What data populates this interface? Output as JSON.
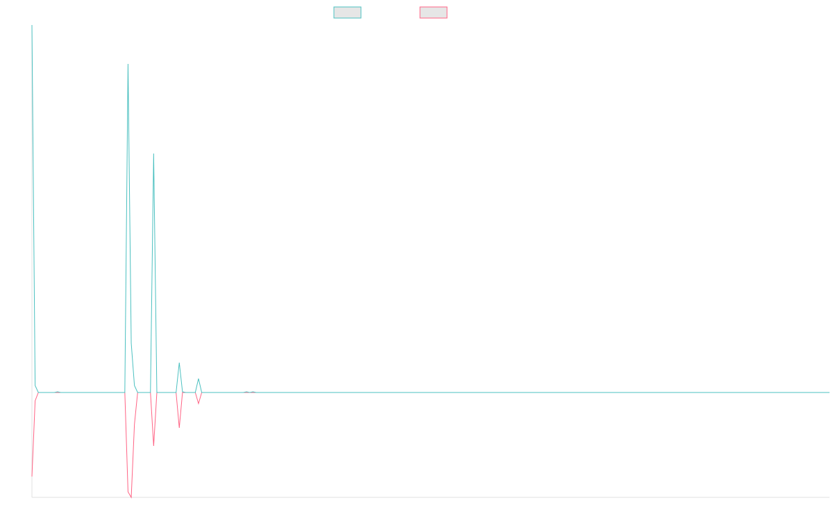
{
  "chart_data": {
    "type": "line",
    "categories": [
      null,
      null,
      null,
      null,
      null,
      null,
      null,
      null,
      null,
      null,
      null,
      null,
      null,
      null,
      null,
      null,
      null,
      null,
      null,
      null,
      null,
      null,
      null,
      null,
      null,
      null,
      null,
      null,
      null,
      null,
      null,
      null,
      null,
      null,
      null,
      null,
      null,
      null,
      null,
      null,
      null,
      null,
      null,
      null,
      null,
      null,
      null,
      null,
      null,
      null,
      null,
      null,
      null,
      null,
      null,
      null,
      null,
      null,
      null,
      null,
      null,
      null,
      null,
      null,
      null,
      null,
      null,
      null,
      null,
      null,
      null,
      null,
      null,
      null,
      null,
      null,
      null,
      null,
      null,
      null,
      null,
      null,
      null,
      null,
      null,
      null,
      null,
      null,
      null,
      null,
      null,
      null,
      null,
      null,
      null,
      null,
      null,
      null,
      null,
      null,
      null,
      null,
      null,
      null,
      null,
      null,
      null,
      null,
      null,
      null,
      null,
      null,
      null,
      null,
      null,
      null,
      null,
      null,
      null,
      null,
      null,
      null,
      null,
      null,
      null,
      null,
      null,
      null,
      null,
      null,
      null,
      null,
      null,
      null,
      null,
      null,
      null,
      null,
      null,
      null,
      null,
      null,
      null,
      null,
      null,
      null,
      null,
      null,
      null,
      null,
      null,
      null,
      null,
      null,
      null,
      null,
      null,
      null,
      null,
      null,
      null,
      null,
      null,
      null,
      null,
      null,
      null,
      null,
      null,
      null,
      null,
      null,
      null,
      null,
      null,
      null,
      null,
      null,
      null,
      null,
      null,
      null,
      null,
      null,
      null,
      null,
      null,
      null,
      null,
      null,
      null,
      null,
      null,
      null,
      null,
      null,
      null,
      null,
      null,
      null,
      null,
      null,
      null,
      null,
      null,
      null,
      null,
      null,
      null,
      null,
      null,
      null,
      null,
      null,
      null,
      null,
      null,
      null,
      null,
      null,
      null,
      null,
      null,
      null,
      null,
      null,
      null,
      null,
      null,
      null,
      null,
      null,
      null,
      null,
      null,
      null,
      null,
      null,
      null,
      null,
      null,
      null,
      null,
      null,
      null,
      null,
      null,
      null,
      null,
      null
    ],
    "series": [
      {
        "color": "#4bc0c0",
        "values": [
          529,
          10,
          0,
          0,
          0,
          0,
          0,
          0,
          1,
          0,
          0,
          0,
          0,
          0,
          0,
          0,
          0,
          0,
          0,
          0,
          0,
          0,
          0,
          0,
          0,
          0,
          0,
          0,
          0,
          0,
          473,
          71,
          10,
          0,
          0,
          0,
          0,
          0,
          344,
          0,
          0,
          0,
          0,
          0,
          0,
          0,
          43,
          1,
          0,
          0,
          0,
          0,
          20,
          0,
          0,
          0,
          0,
          0,
          0,
          0,
          0,
          0,
          0,
          0,
          0,
          0,
          0,
          1,
          0,
          1,
          0,
          0,
          0,
          0,
          0,
          0,
          0,
          0,
          0,
          0,
          0,
          0,
          0,
          0,
          0,
          0,
          0,
          0,
          0,
          0,
          0,
          0,
          0,
          0,
          0,
          0,
          0,
          0,
          0,
          0,
          0,
          0,
          0,
          0,
          0,
          0,
          0,
          0,
          0,
          0,
          0,
          0,
          0,
          0,
          0,
          0,
          0,
          0,
          0,
          0,
          0,
          0,
          0,
          0,
          0,
          0,
          0,
          0,
          0,
          0,
          0,
          0,
          0,
          0,
          0,
          0,
          0,
          0,
          0,
          0,
          0,
          0,
          0,
          0,
          0,
          0,
          0,
          0,
          0,
          0,
          0,
          0,
          0,
          0,
          0,
          0,
          0,
          0,
          0,
          0,
          0,
          0,
          0,
          0,
          0,
          0,
          0,
          0,
          0,
          0,
          0,
          0,
          0,
          0,
          0,
          0,
          0,
          0,
          0,
          0,
          0,
          0,
          0,
          0,
          0,
          0,
          0,
          0,
          0,
          0,
          0,
          0,
          0,
          0,
          0,
          0,
          0,
          0,
          0,
          0,
          0,
          0,
          0,
          0,
          0,
          0,
          0,
          0,
          0,
          0,
          0,
          0,
          0,
          0,
          0,
          0,
          0,
          0,
          0,
          0,
          0,
          0,
          0,
          0,
          0,
          0,
          0,
          0,
          0,
          0,
          0,
          0,
          0,
          0,
          0,
          0,
          0,
          0,
          0,
          0,
          0,
          0,
          0,
          0,
          0,
          0,
          0,
          0,
          0,
          0
        ]
      },
      {
        "color": "#ff6384",
        "values": [
          -121,
          -12,
          0,
          0,
          0,
          0,
          0,
          0,
          0,
          0,
          0,
          0,
          0,
          0,
          0,
          0,
          0,
          0,
          0,
          0,
          0,
          0,
          0,
          0,
          0,
          0,
          0,
          0,
          0,
          0,
          -143,
          -151,
          -46,
          0,
          0,
          0,
          0,
          0,
          -77,
          0,
          0,
          0,
          0,
          0,
          0,
          0,
          -51,
          0,
          0,
          0,
          0,
          0,
          -16,
          0,
          0,
          0,
          0,
          0,
          0,
          0,
          0,
          0,
          0,
          0,
          0,
          0,
          0,
          0,
          0,
          0,
          0,
          0,
          0,
          0,
          0,
          0,
          0,
          0,
          0,
          0,
          0,
          0,
          0,
          0,
          0,
          0,
          0,
          0,
          0,
          0,
          0,
          0,
          0,
          0,
          0,
          0,
          0,
          0,
          0,
          0,
          0,
          0,
          0,
          0,
          0,
          0,
          0,
          0,
          0,
          0,
          0,
          0,
          0,
          0,
          0,
          0,
          0,
          0,
          0,
          0,
          0,
          0,
          0,
          0,
          0,
          0,
          0,
          0,
          0,
          0,
          0,
          0,
          0,
          0,
          0,
          0,
          0,
          0,
          0,
          0,
          0,
          0,
          0,
          0,
          0,
          0,
          0,
          0,
          0,
          0,
          0,
          0,
          0,
          0,
          0,
          0,
          0,
          0,
          0,
          0,
          0,
          0,
          0,
          0,
          0,
          0,
          0,
          0,
          0,
          0,
          0,
          0,
          0,
          0,
          0,
          0,
          0,
          0,
          0,
          0,
          0,
          0,
          0,
          0,
          0,
          0,
          0,
          0,
          0,
          0,
          0,
          0,
          0,
          0,
          0,
          0,
          0,
          0,
          0,
          0,
          0,
          0,
          0,
          0,
          0,
          0,
          0,
          0,
          0,
          0,
          0,
          0,
          0,
          0,
          0,
          0,
          0,
          0,
          0,
          0,
          0,
          0,
          0,
          0,
          0,
          0,
          0,
          0,
          0,
          0,
          0,
          0,
          0,
          0,
          0,
          0,
          0,
          0,
          0,
          0,
          0,
          0,
          0,
          0,
          0,
          0,
          0,
          0,
          0,
          0
        ]
      }
    ],
    "ylim": [
      -151,
      529
    ],
    "grid": false
  }
}
